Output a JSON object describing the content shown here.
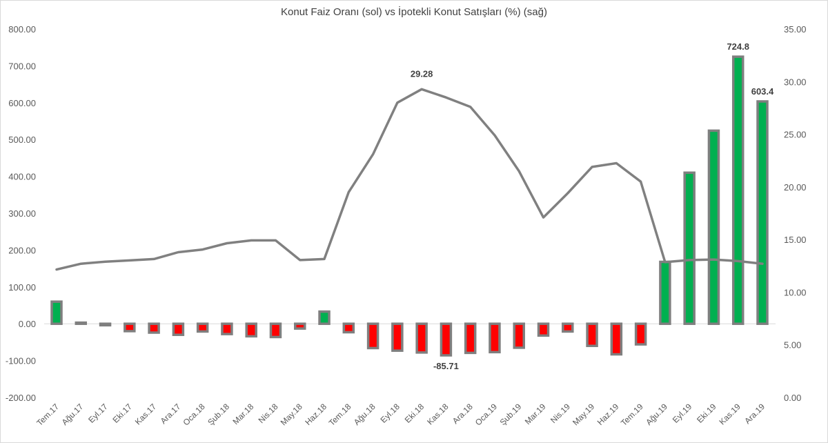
{
  "chart_data": {
    "type": "bar",
    "title": "Konut Faiz Oranı (sol) vs İpotekli Konut Satışları  (%) (sağ)",
    "categories": [
      "Tem.17",
      "Ağu.17",
      "Eyl.17",
      "Eki.17",
      "Kas.17",
      "Ara.17",
      "Oca.18",
      "Şub.18",
      "Mar.18",
      "Nis.18",
      "May.18",
      "Haz.18",
      "Tem.18",
      "Ağu.18",
      "Eyl.18",
      "Eki.18",
      "Kas.18",
      "Ara.18",
      "Oca.19",
      "Şub.19",
      "Mar.19",
      "Nis.19",
      "May.19",
      "Haz.19",
      "Tem.19",
      "Ağu.19",
      "Eyl.19",
      "Eki.19",
      "Kas.19",
      "Ara.19"
    ],
    "y_left": {
      "ylim": [
        -200,
        800
      ],
      "ticks": [
        "-200.00",
        "-100.00",
        "0.00",
        "100.00",
        "200.00",
        "300.00",
        "400.00",
        "500.00",
        "600.00",
        "700.00",
        "800.00"
      ]
    },
    "y_right": {
      "ylim": [
        0,
        35
      ],
      "ticks": [
        "0.00",
        "5.00",
        "10.00",
        "15.00",
        "20.00",
        "25.00",
        "30.00",
        "35.00"
      ]
    },
    "series": [
      {
        "type": "bar",
        "axis": "left",
        "positive_color": "#00b050",
        "negative_color": "#ff0000",
        "border_color": "#7f7f7f",
        "values": [
          60,
          3,
          -4,
          -20,
          -24,
          -30,
          -21,
          -28,
          -34,
          -36,
          -13,
          33,
          -23,
          -66,
          -73,
          -78,
          -85.71,
          -79,
          -77,
          -65,
          -32,
          -21,
          -60,
          -83,
          -56,
          168,
          410,
          524,
          724.8,
          603.4
        ]
      },
      {
        "type": "line",
        "axis": "right",
        "color": "#808080",
        "values": [
          12.15,
          12.7,
          12.9,
          13.02,
          13.15,
          13.8,
          14.05,
          14.65,
          14.92,
          14.92,
          13.05,
          13.15,
          19.5,
          23.1,
          28.0,
          29.28,
          28.5,
          27.6,
          24.9,
          21.5,
          17.1,
          19.4,
          21.9,
          22.25,
          20.5,
          12.85,
          13.05,
          13.1,
          12.95,
          12.7
        ]
      }
    ],
    "data_labels": [
      {
        "series": 0,
        "index": 28,
        "text": "724.8"
      },
      {
        "series": 0,
        "index": 29,
        "text": "603.4"
      },
      {
        "series": 0,
        "index": 16,
        "text": "-85.71"
      },
      {
        "series": 1,
        "index": 15,
        "text": "29.28"
      }
    ]
  }
}
